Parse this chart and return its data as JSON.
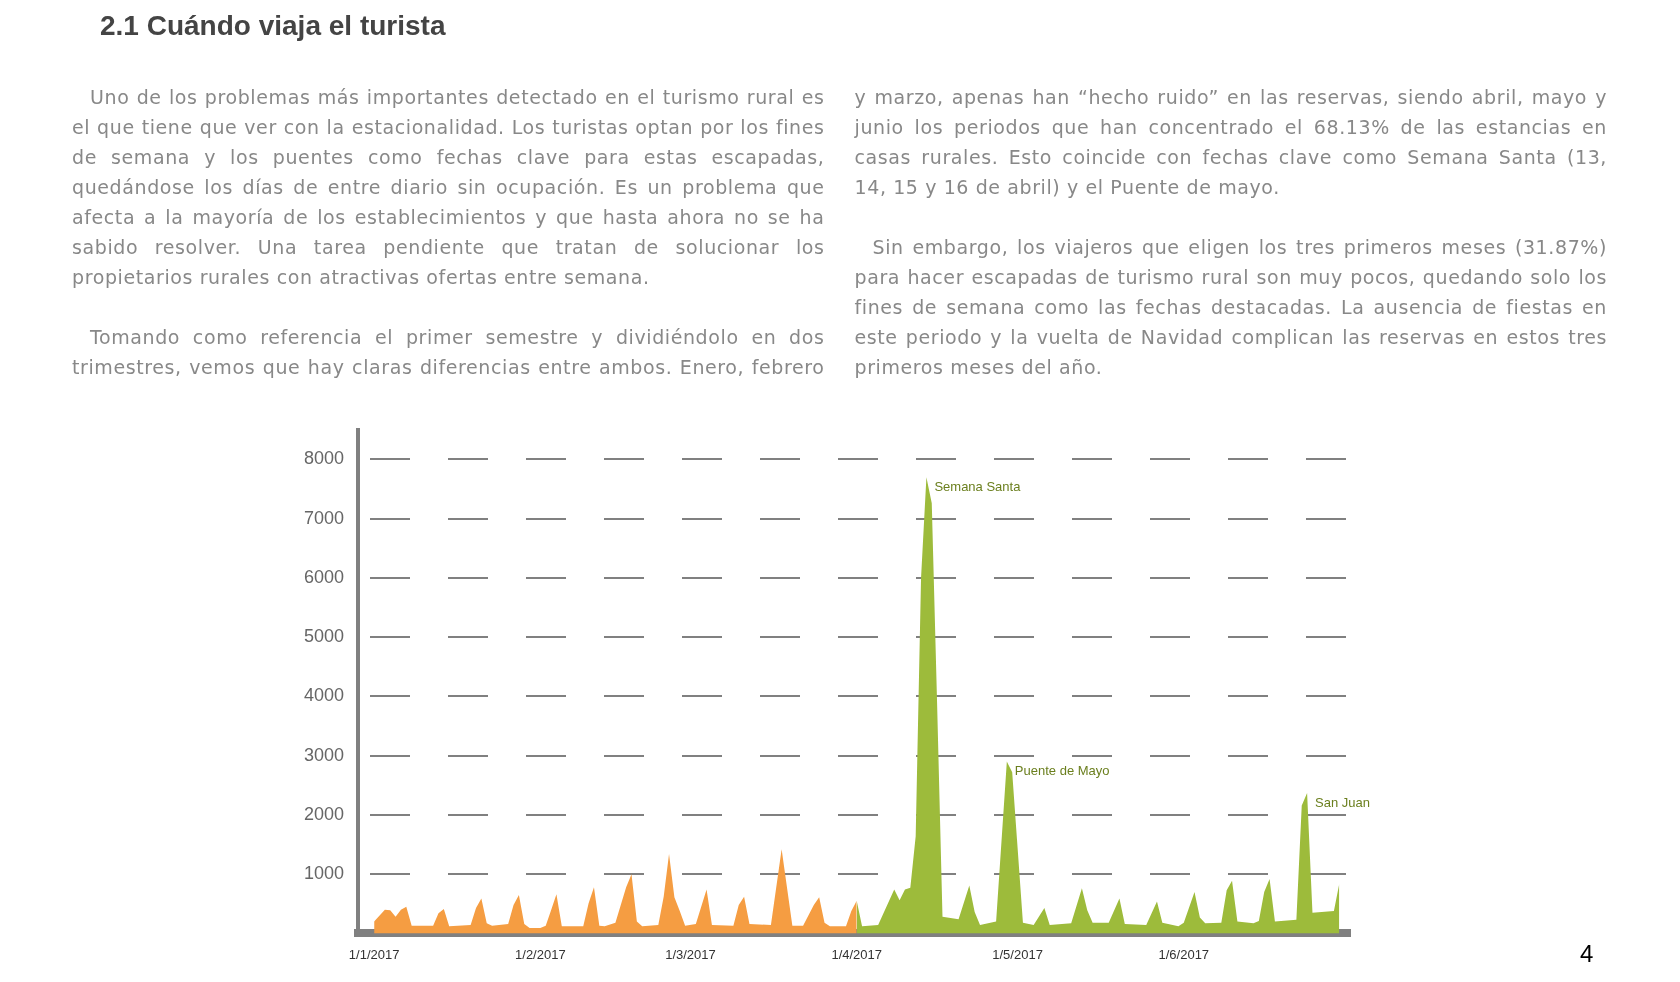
{
  "chart_data": {
    "type": "area",
    "title": "2.1 Cuándo viaja el turista",
    "annotations": [
      "Uno de los problemas más importantes detectado en el turismo rural es el que tiene que ver con la estacionalidad. Los turistas optan por los fines de semana y los puentes como fechas clave para estas escapadas, quedándose los días de entre diario sin ocupación. Es un problema que afecta a la mayoría de los establecimientos y que hasta ahora no se ha sabido resolver. Una tarea pendiente que tratan de solucionar los propietarios rurales con atractivas ofertas entre semana.",
      "Tomando como referencia el primer semestre y dividiéndolo en dos trimestres, vemos que hay claras diferencias entre ambos. Enero, febrero y marzo, apenas han “hecho ruido” en las reservas, siendo abril, mayo y junio los periodos que han concentrado el 68.13% de las estancias en casas rurales. Esto coincide con fechas clave como Semana Santa (13, 14, 15 y 16 de abril) y el Puente de mayo.",
      "Sin embargo, los viajeros que eligen los tres primeros meses (31.87%) para hacer escapadas de turismo rural son muy pocos, quedando solo los fines de semana como las fechas destacadas. La ausencia de fiestas en este periodo y la vuelta de Navidad complican las reservas en estos tres primeros meses del año.",
      "4",
      {
        "text": "Semana Santa",
        "x": "2017-04-14",
        "y": 7700
      },
      {
        "text": "Puente de Mayo",
        "x": "2017-04-29",
        "y": 2900
      },
      {
        "text": "San Juan",
        "x": "2017-06-24",
        "y": 2370
      }
    ],
    "series": [
      {
        "color": "#f59d42",
        "x": [
          "2017-01-01",
          "2017-01-03",
          "2017-01-04",
          "2017-01-05",
          "2017-01-06",
          "2017-01-07",
          "2017-01-08",
          "2017-01-12",
          "2017-01-13",
          "2017-01-14",
          "2017-01-15",
          "2017-01-19",
          "2017-01-20",
          "2017-01-21",
          "2017-01-22",
          "2017-01-23",
          "2017-01-26",
          "2017-01-27",
          "2017-01-28",
          "2017-01-29",
          "2017-01-30",
          "2017-02-01",
          "2017-02-02",
          "2017-02-03",
          "2017-02-04",
          "2017-02-05",
          "2017-02-09",
          "2017-02-10",
          "2017-02-11",
          "2017-02-12",
          "2017-02-13",
          "2017-02-15",
          "2017-02-17",
          "2017-02-18",
          "2017-02-19",
          "2017-02-20",
          "2017-02-23",
          "2017-02-24",
          "2017-02-25",
          "2017-02-26",
          "2017-02-27",
          "2017-02-28",
          "2017-03-02",
          "2017-03-04",
          "2017-03-05",
          "2017-03-09",
          "2017-03-10",
          "2017-03-11",
          "2017-03-12",
          "2017-03-16",
          "2017-03-18",
          "2017-03-20",
          "2017-03-22",
          "2017-03-24",
          "2017-03-25",
          "2017-03-26",
          "2017-03-27",
          "2017-03-30",
          "2017-03-31",
          "2017-04-01"
        ],
        "values": [
          200,
          400,
          390,
          280,
          400,
          450,
          130,
          130,
          340,
          410,
          120,
          140,
          430,
          590,
          170,
          130,
          160,
          480,
          650,
          160,
          90,
          90,
          130,
          390,
          660,
          120,
          120,
          510,
          780,
          130,
          120,
          180,
          780,
          1000,
          200,
          120,
          140,
          620,
          1340,
          610,
          380,
          130,
          160,
          740,
          140,
          130,
          480,
          620,
          160,
          140,
          1420,
          130,
          130,
          480,
          610,
          180,
          120,
          120,
          380,
          550
        ]
      },
      {
        "color": "#9dbb3b",
        "x": [
          "2017-04-01",
          "2017-04-02",
          "2017-04-05",
          "2017-04-08",
          "2017-04-09",
          "2017-04-10",
          "2017-04-11",
          "2017-04-12",
          "2017-04-13",
          "2017-04-14",
          "2017-04-15",
          "2017-04-16",
          "2017-04-17",
          "2017-04-20",
          "2017-04-22",
          "2017-04-23",
          "2017-04-24",
          "2017-04-27",
          "2017-04-29",
          "2017-04-30",
          "2017-05-02",
          "2017-05-04",
          "2017-05-06",
          "2017-05-07",
          "2017-05-11",
          "2017-05-13",
          "2017-05-14",
          "2017-05-15",
          "2017-05-18",
          "2017-05-20",
          "2017-05-21",
          "2017-05-25",
          "2017-05-27",
          "2017-05-28",
          "2017-05-31",
          "2017-06-01",
          "2017-06-03",
          "2017-06-04",
          "2017-06-05",
          "2017-06-08",
          "2017-06-09",
          "2017-06-10",
          "2017-06-11",
          "2017-06-14",
          "2017-06-15",
          "2017-06-16",
          "2017-06-17",
          "2017-06-18",
          "2017-06-22",
          "2017-06-23",
          "2017-06-24",
          "2017-06-25",
          "2017-06-29",
          "2017-06-30"
        ],
        "values": [
          550,
          120,
          140,
          740,
          560,
          740,
          770,
          1640,
          6000,
          7700,
          7260,
          3860,
          280,
          240,
          810,
          360,
          140,
          200,
          2900,
          2720,
          180,
          140,
          430,
          140,
          170,
          760,
          390,
          180,
          180,
          590,
          160,
          140,
          540,
          180,
          120,
          180,
          700,
          270,
          170,
          180,
          730,
          890,
          200,
          170,
          210,
          700,
          920,
          200,
          230,
          2160,
          2370,
          350,
          380,
          840
        ]
      }
    ],
    "xlim": [
      "2016-12-29",
      "2017-07-02"
    ],
    "xticks": [
      {
        "value": "2017-01-01",
        "label": "1/1/2017"
      },
      {
        "value": "2017-02-01",
        "label": "1/2/2017"
      },
      {
        "value": "2017-03-01",
        "label": "1/3/2017"
      },
      {
        "value": "2017-04-01",
        "label": "1/4/2017"
      },
      {
        "value": "2017-05-01",
        "label": "1/5/2017"
      },
      {
        "value": "2017-06-01",
        "label": "1/6/2017"
      }
    ],
    "ylim": [
      0,
      8500
    ],
    "yticks": [
      1000,
      2000,
      3000,
      4000,
      5000,
      6000,
      7000,
      8000
    ],
    "grid": "y"
  }
}
